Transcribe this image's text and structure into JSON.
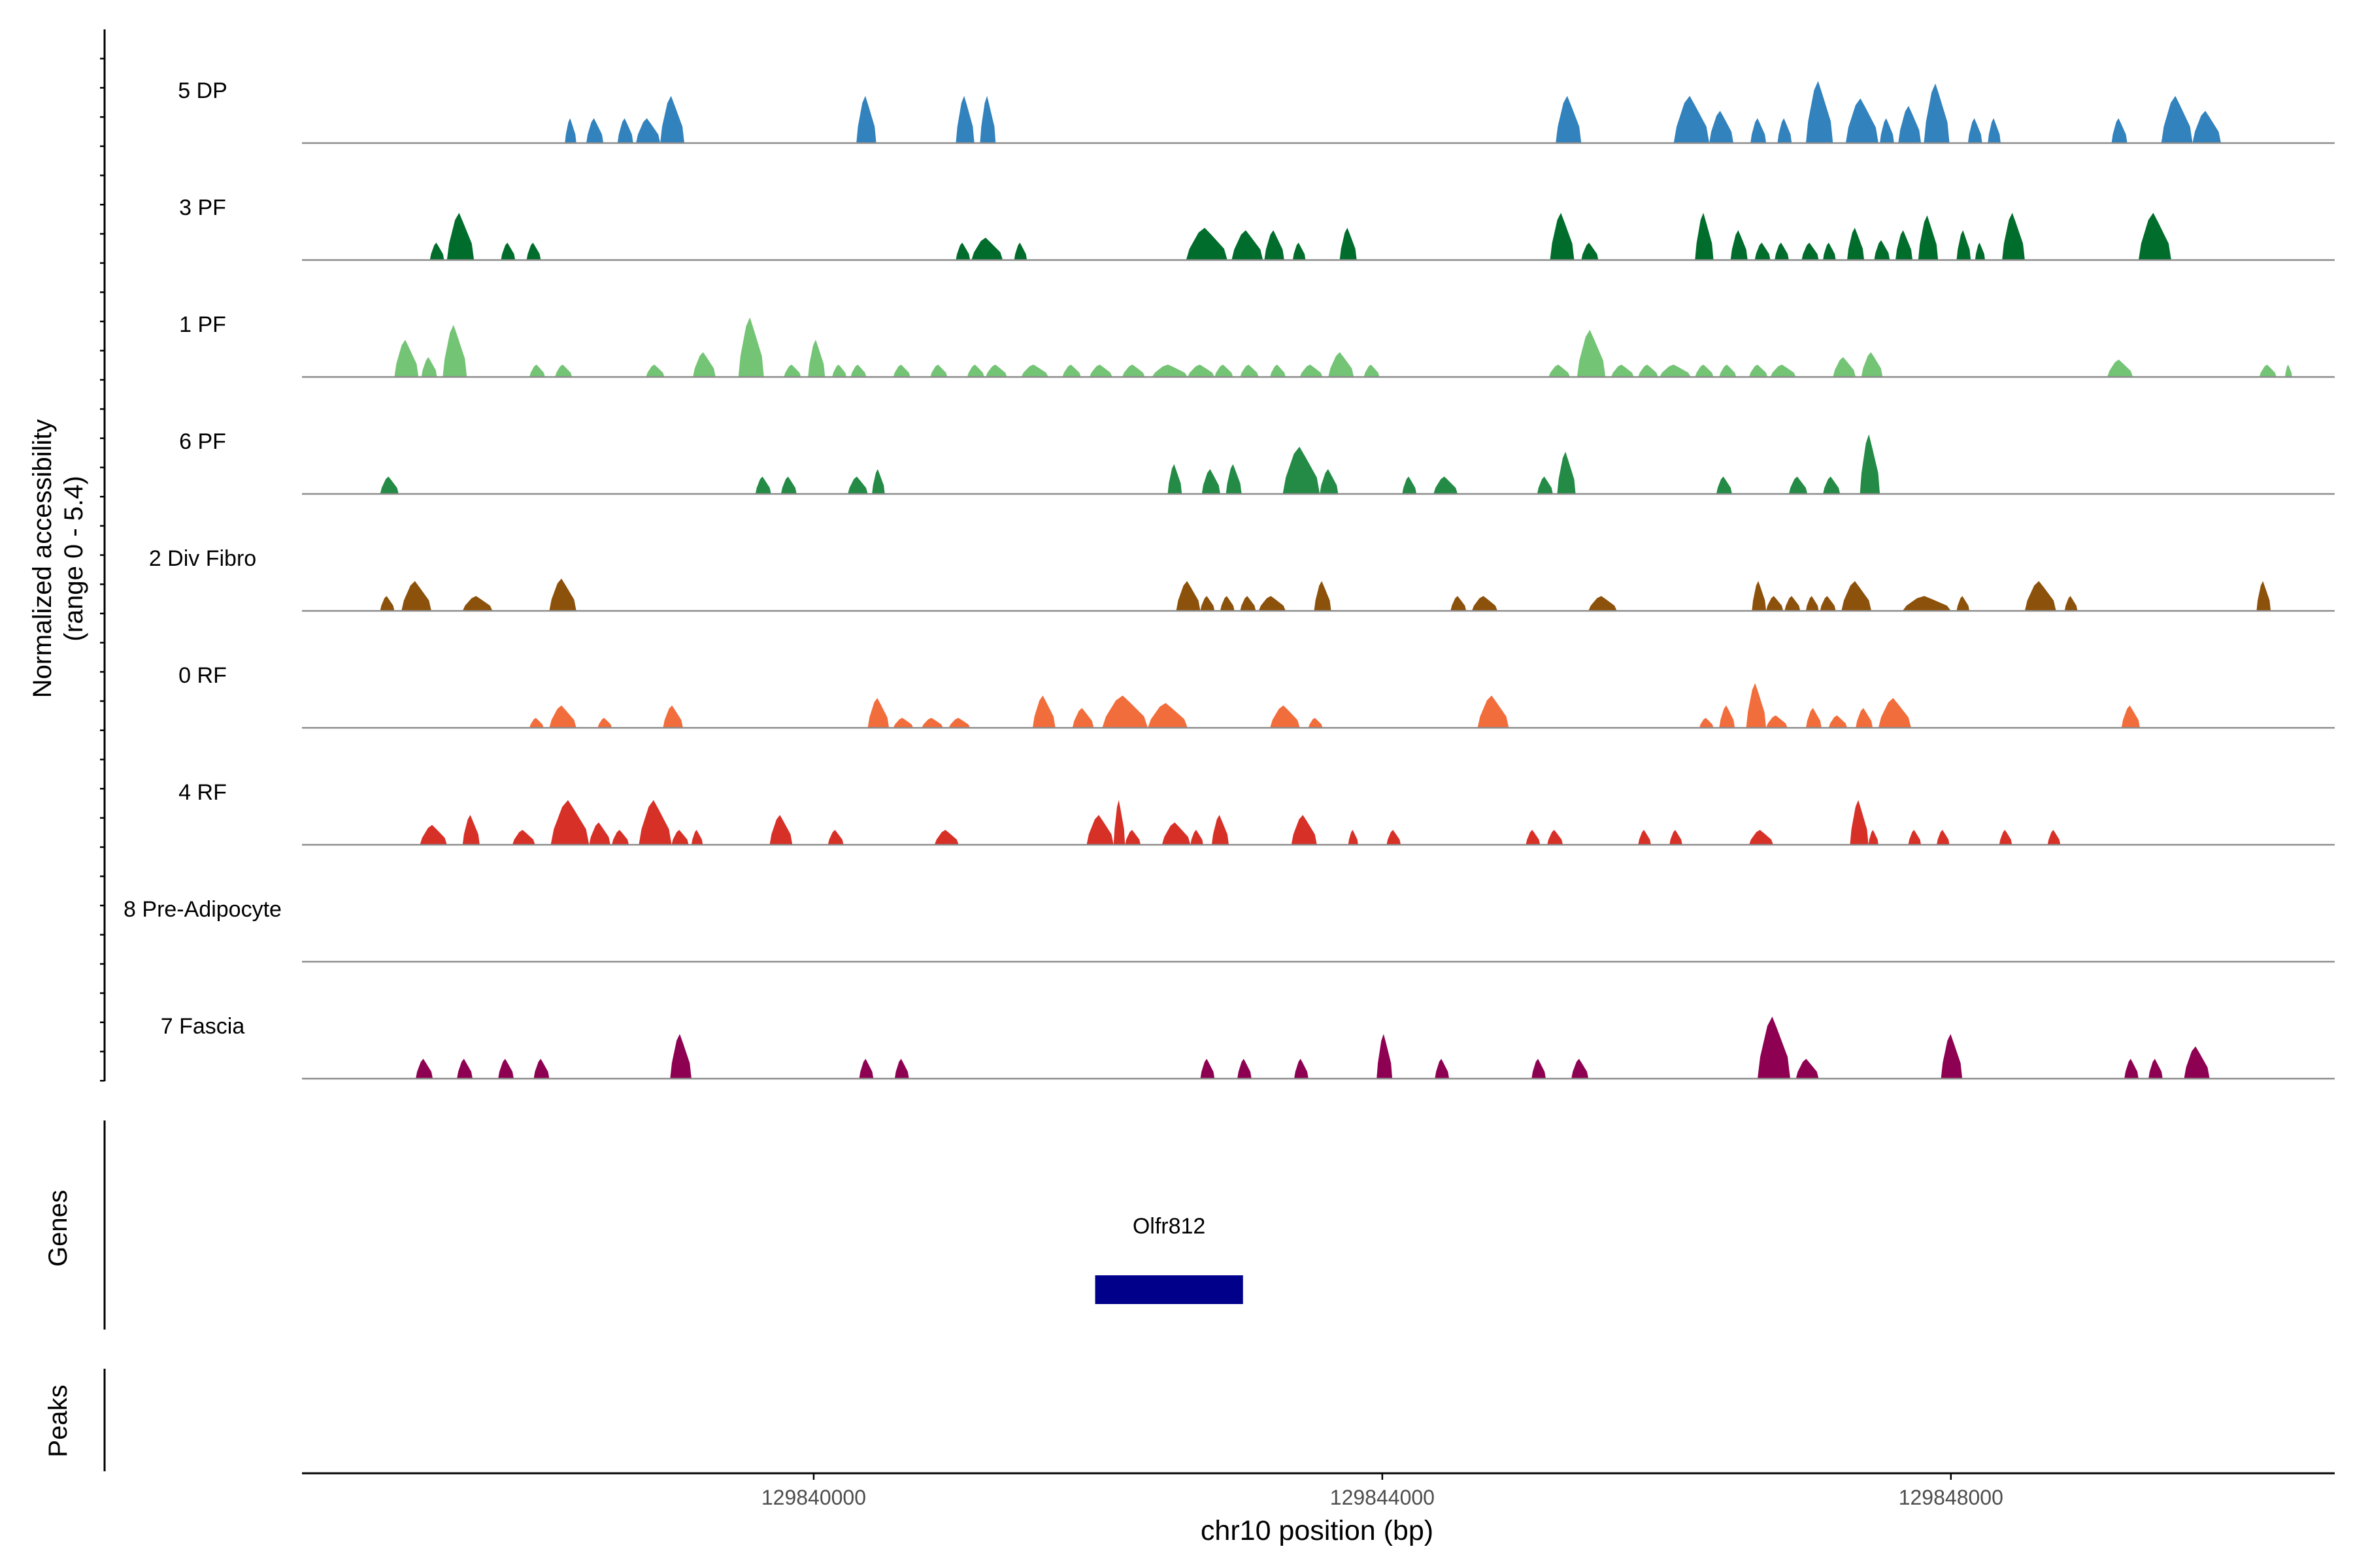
{
  "chart_data": {
    "type": "area",
    "title": "",
    "ylabel_line1": "Normalized accessibility",
    "ylabel_line2": "(range 0 - 5.4)",
    "xlabel": "chr10 position (bp)",
    "ylim": [
      0,
      5.4
    ],
    "xlim": [
      129836400,
      129850700
    ],
    "xticks": [
      129840000,
      129844000,
      129848000
    ],
    "xtick_labels": [
      "129840000",
      "129844000",
      "129848000"
    ],
    "genes_label": "Genes",
    "peaks_label": "Peaks",
    "genes": [
      {
        "name": "Olfr812",
        "start": 129841980,
        "end": 129843020,
        "color": "#00008B"
      }
    ],
    "series": [
      {
        "name": "5 DP",
        "color": "#3182BD",
        "peaks": [
          [
            129838250,
            129838330,
            2.0
          ],
          [
            129838400,
            129838520,
            2.0
          ],
          [
            129838620,
            129838730,
            2.0
          ],
          [
            129838750,
            129838920,
            2.0
          ],
          [
            129838920,
            129839090,
            3.8
          ],
          [
            129840300,
            129840440,
            3.8
          ],
          [
            129841000,
            129841130,
            3.8
          ],
          [
            129841170,
            129841280,
            3.8
          ],
          [
            129845220,
            129845400,
            3.8
          ],
          [
            129846050,
            129846300,
            3.8
          ],
          [
            129846300,
            129846470,
            2.6
          ],
          [
            129846590,
            129846700,
            2.0
          ],
          [
            129846780,
            129846880,
            2.0
          ],
          [
            129846980,
            129847170,
            5.0
          ],
          [
            129847260,
            129847490,
            3.6
          ],
          [
            129847500,
            129847600,
            2.0
          ],
          [
            129847630,
            129847790,
            3.0
          ],
          [
            129847810,
            129847990,
            4.8
          ],
          [
            129848120,
            129848220,
            2.0
          ],
          [
            129848260,
            129848350,
            2.0
          ],
          [
            129849130,
            129849240,
            2.0
          ],
          [
            129849480,
            129849700,
            3.8
          ],
          [
            129849700,
            129849900,
            2.6
          ]
        ]
      },
      {
        "name": "3 PF",
        "color": "#006D2C",
        "peaks": [
          [
            129837300,
            129837400,
            1.4
          ],
          [
            129837420,
            129837610,
            3.8
          ],
          [
            129837800,
            129837900,
            1.4
          ],
          [
            129837980,
            129838080,
            1.4
          ],
          [
            129841000,
            129841100,
            1.4
          ],
          [
            129841110,
            129841330,
            1.8
          ],
          [
            129841410,
            129841500,
            1.4
          ],
          [
            129842620,
            129842910,
            2.6
          ],
          [
            129842940,
            129843160,
            2.4
          ],
          [
            129843170,
            129843310,
            2.4
          ],
          [
            129843370,
            129843460,
            1.4
          ],
          [
            129843700,
            129843820,
            2.6
          ],
          [
            129845180,
            129845350,
            3.8
          ],
          [
            129845400,
            129845520,
            1.4
          ],
          [
            129846200,
            129846330,
            3.8
          ],
          [
            129846450,
            129846570,
            2.4
          ],
          [
            129846620,
            129846730,
            1.4
          ],
          [
            129846760,
            129846860,
            1.4
          ],
          [
            129846950,
            129847070,
            1.4
          ],
          [
            129847100,
            129847190,
            1.4
          ],
          [
            129847270,
            129847390,
            2.6
          ],
          [
            129847460,
            129847570,
            1.6
          ],
          [
            129847610,
            129847730,
            2.4
          ],
          [
            129847770,
            129847910,
            3.6
          ],
          [
            129848040,
            129848140,
            2.4
          ],
          [
            129848170,
            129848240,
            1.4
          ],
          [
            129848360,
            129848520,
            3.8
          ],
          [
            129849320,
            129849550,
            3.8
          ]
        ]
      },
      {
        "name": "1 PF",
        "color": "#74C476",
        "peaks": [
          [
            129837050,
            129837220,
            3.0
          ],
          [
            129837240,
            129837350,
            1.6
          ],
          [
            129837390,
            129837560,
            4.2
          ],
          [
            129838000,
            129838110,
            1.0
          ],
          [
            129838180,
            129838300,
            1.0
          ],
          [
            129838820,
            129838950,
            1.0
          ],
          [
            129839150,
            129839310,
            2.0
          ],
          [
            129839470,
            129839650,
            4.8
          ],
          [
            129839790,
            129839910,
            1.0
          ],
          [
            129839960,
            129840080,
            3.0
          ],
          [
            129840130,
            129840230,
            1.0
          ],
          [
            129840260,
            129840370,
            1.0
          ],
          [
            129840560,
            129840680,
            1.0
          ],
          [
            129840820,
            129840940,
            1.0
          ],
          [
            129841080,
            129841200,
            1.0
          ],
          [
            129841210,
            129841360,
            1.0
          ],
          [
            129841460,
            129841650,
            1.0
          ],
          [
            129841750,
            129841880,
            1.0
          ],
          [
            129841940,
            129842100,
            1.0
          ],
          [
            129842170,
            129842330,
            1.0
          ],
          [
            129842380,
            129842630,
            1.0
          ],
          [
            129842630,
            129842820,
            1.0
          ],
          [
            129842820,
            129842950,
            1.0
          ],
          [
            129843000,
            129843130,
            1.0
          ],
          [
            129843210,
            129843320,
            1.0
          ],
          [
            129843420,
            129843580,
            1.0
          ],
          [
            129843620,
            129843800,
            2.0
          ],
          [
            129843870,
            129843980,
            1.0
          ],
          [
            129845170,
            129845320,
            1.0
          ],
          [
            129845370,
            129845570,
            3.8
          ],
          [
            129845610,
            129845770,
            1.0
          ],
          [
            129845800,
            129845940,
            1.0
          ],
          [
            129845950,
            129846170,
            1.0
          ],
          [
            129846200,
            129846330,
            1.0
          ],
          [
            129846370,
            129846490,
            1.0
          ],
          [
            129846580,
            129846710,
            1.0
          ],
          [
            129846730,
            129846910,
            1.0
          ],
          [
            129847170,
            129847330,
            1.6
          ],
          [
            129847370,
            129847520,
            2.0
          ],
          [
            129849100,
            129849280,
            1.4
          ],
          [
            129850170,
            129850290,
            1.0
          ],
          [
            129850350,
            129850400,
            1.0
          ]
        ]
      },
      {
        "name": "6 PF",
        "color": "#238B45",
        "peaks": [
          [
            129836950,
            129837080,
            1.4
          ],
          [
            129839590,
            129839700,
            1.4
          ],
          [
            129839770,
            129839880,
            1.4
          ],
          [
            129840240,
            129840380,
            1.4
          ],
          [
            129840410,
            129840500,
            2.0
          ],
          [
            129842490,
            129842590,
            2.4
          ],
          [
            129842730,
            129842860,
            2.0
          ],
          [
            129842900,
            129843010,
            2.4
          ],
          [
            129843300,
            129843560,
            3.8
          ],
          [
            129843560,
            129843690,
            2.0
          ],
          [
            129844140,
            129844240,
            1.4
          ],
          [
            129844360,
            129844530,
            1.4
          ],
          [
            129845090,
            129845200,
            1.4
          ],
          [
            129845230,
            129845360,
            3.4
          ],
          [
            129846350,
            129846460,
            1.4
          ],
          [
            129846860,
            129846990,
            1.4
          ],
          [
            129847100,
            129847220,
            1.4
          ],
          [
            129847360,
            129847500,
            4.8
          ]
        ]
      },
      {
        "name": "2 Div Fibro",
        "color": "#8C510A",
        "peaks": [
          [
            129836950,
            129837050,
            1.2
          ],
          [
            129837100,
            129837310,
            2.4
          ],
          [
            129837530,
            129837740,
            1.2
          ],
          [
            129838140,
            129838330,
            2.6
          ],
          [
            129842550,
            129842720,
            2.4
          ],
          [
            129842720,
            129842820,
            1.2
          ],
          [
            129842860,
            129842960,
            1.2
          ],
          [
            129843000,
            129843110,
            1.2
          ],
          [
            129843130,
            129843320,
            1.2
          ],
          [
            129843520,
            129843640,
            2.4
          ],
          [
            129844480,
            129844590,
            1.2
          ],
          [
            129844630,
            129844810,
            1.2
          ],
          [
            129845450,
            129845650,
            1.2
          ],
          [
            129846600,
            129846700,
            2.4
          ],
          [
            129846700,
            129846820,
            1.2
          ],
          [
            129846830,
            129846940,
            1.2
          ],
          [
            129846980,
            129847070,
            1.2
          ],
          [
            129847080,
            129847190,
            1.2
          ],
          [
            129847230,
            129847440,
            2.4
          ],
          [
            129847660,
            129848000,
            1.2
          ],
          [
            129848040,
            129848130,
            1.2
          ],
          [
            129848520,
            129848740,
            2.4
          ],
          [
            129848800,
            129848890,
            1.2
          ],
          [
            129850150,
            129850250,
            2.4
          ]
        ]
      },
      {
        "name": "0 RF",
        "color": "#F16D3C",
        "peaks": [
          [
            129838000,
            129838100,
            0.8
          ],
          [
            129838140,
            129838330,
            1.8
          ],
          [
            129838480,
            129838580,
            0.8
          ],
          [
            129838940,
            129839080,
            1.8
          ],
          [
            129840380,
            129840530,
            2.4
          ],
          [
            129840560,
            129840700,
            0.8
          ],
          [
            129840760,
            129840910,
            0.8
          ],
          [
            129840950,
            129841100,
            0.8
          ],
          [
            129841540,
            129841700,
            2.6
          ],
          [
            129841820,
            129841970,
            1.6
          ],
          [
            129842030,
            129842350,
            2.6
          ],
          [
            129842350,
            129842630,
            2.0
          ],
          [
            129843210,
            129843420,
            1.8
          ],
          [
            129843480,
            129843580,
            0.8
          ],
          [
            129844670,
            129844890,
            2.6
          ],
          [
            129846230,
            129846330,
            0.8
          ],
          [
            129846370,
            129846480,
            1.8
          ],
          [
            129846560,
            129846700,
            3.6
          ],
          [
            129846700,
            129846850,
            1.0
          ],
          [
            129846980,
            129847090,
            1.6
          ],
          [
            129847140,
            129847270,
            1.0
          ],
          [
            129847330,
            129847450,
            1.6
          ],
          [
            129847490,
            129847720,
            2.4
          ],
          [
            129849200,
            129849330,
            1.8
          ]
        ]
      },
      {
        "name": "4 RF",
        "color": "#D73027",
        "peaks": [
          [
            129837230,
            129837420,
            1.6
          ],
          [
            129837530,
            129837650,
            2.4
          ],
          [
            129837880,
            129838040,
            1.2
          ],
          [
            129838150,
            129838420,
            3.6
          ],
          [
            129838420,
            129838570,
            1.8
          ],
          [
            129838580,
            129838700,
            1.2
          ],
          [
            129838770,
            129839000,
            3.6
          ],
          [
            129839000,
            129839120,
            1.2
          ],
          [
            129839140,
            129839220,
            1.2
          ],
          [
            129839690,
            129839850,
            2.4
          ],
          [
            129840100,
            129840210,
            1.2
          ],
          [
            129840850,
            129841020,
            1.2
          ],
          [
            129841920,
            129842110,
            2.4
          ],
          [
            129842110,
            129842190,
            3.6
          ],
          [
            129842190,
            129842300,
            1.2
          ],
          [
            129842450,
            129842650,
            1.8
          ],
          [
            129842650,
            129842740,
            1.2
          ],
          [
            129842800,
            129842920,
            2.4
          ],
          [
            129843360,
            129843540,
            2.4
          ],
          [
            129843760,
            129843830,
            1.2
          ],
          [
            129844030,
            129844130,
            1.2
          ],
          [
            129845010,
            129845110,
            1.2
          ],
          [
            129845160,
            129845270,
            1.2
          ],
          [
            129845800,
            129845890,
            1.2
          ],
          [
            129846020,
            129846110,
            1.2
          ],
          [
            129846580,
            129846750,
            1.2
          ],
          [
            129847290,
            129847420,
            3.6
          ],
          [
            129847420,
            129847490,
            1.2
          ],
          [
            129847700,
            129847790,
            1.2
          ],
          [
            129847900,
            129847990,
            1.2
          ],
          [
            129848340,
            129848430,
            1.2
          ],
          [
            129848680,
            129848770,
            1.2
          ]
        ]
      },
      {
        "name": "8 Pre-Adipocyte",
        "color": "#FDB863",
        "peaks": []
      },
      {
        "name": "7 Fascia",
        "color": "#8E0152",
        "peaks": [
          [
            129837200,
            129837320,
            1.6
          ],
          [
            129837490,
            129837600,
            1.6
          ],
          [
            129837780,
            129837890,
            1.6
          ],
          [
            129838030,
            129838140,
            1.6
          ],
          [
            129838990,
            129839140,
            3.6
          ],
          [
            129840320,
            129840420,
            1.6
          ],
          [
            129840570,
            129840670,
            1.6
          ],
          [
            129842720,
            129842820,
            1.6
          ],
          [
            129842980,
            129843080,
            1.6
          ],
          [
            129843380,
            129843480,
            1.6
          ],
          [
            129843960,
            129844070,
            3.6
          ],
          [
            129844370,
            129844470,
            1.6
          ],
          [
            129845050,
            129845150,
            1.6
          ],
          [
            129845330,
            129845450,
            1.6
          ],
          [
            129846640,
            129846870,
            5.0
          ],
          [
            129846910,
            129847070,
            1.6
          ],
          [
            129847930,
            129848080,
            3.6
          ],
          [
            129849220,
            129849320,
            1.6
          ],
          [
            129849390,
            129849490,
            1.6
          ],
          [
            129849640,
            129849820,
            2.6
          ]
        ]
      }
    ]
  }
}
